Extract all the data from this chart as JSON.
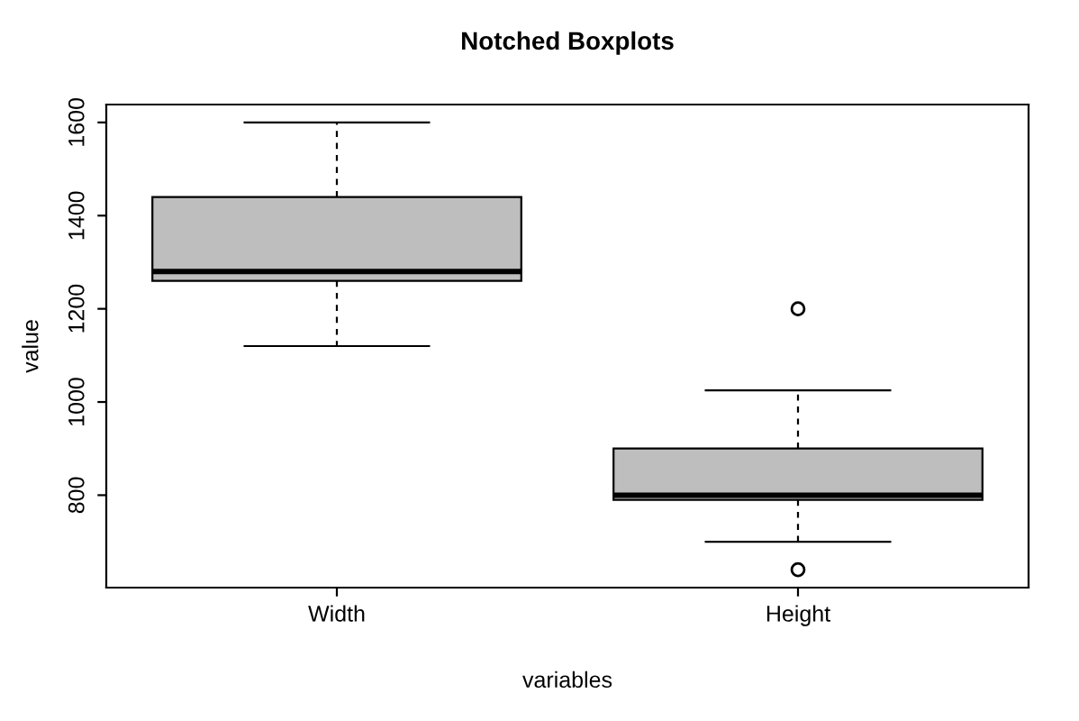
{
  "chart_data": {
    "type": "box",
    "title": "Notched Boxplots",
    "xlabel": "variables",
    "ylabel": "value",
    "categories": [
      "Width",
      "Height"
    ],
    "series": [
      {
        "color": "#bebebe",
        "boxes": [
          {
            "low": 1120,
            "q1": 1260,
            "median": 1280,
            "q3": 1440,
            "high": 1600
          },
          {
            "low": 700,
            "q1": 790,
            "median": 800,
            "q3": 900,
            "high": 1025,
            "outliers": [
              1200,
              640
            ]
          }
        ]
      }
    ],
    "ylim": [
      601.6,
      1638.4
    ],
    "yticks": [
      800,
      1000,
      1200,
      1400,
      1600
    ],
    "grid": false
  }
}
